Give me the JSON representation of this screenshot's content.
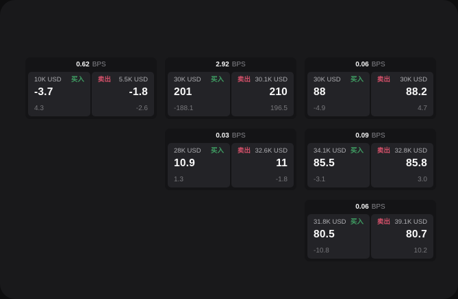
{
  "labels": {
    "bps_suffix": "BPS",
    "buy": "买入",
    "sell": "卖出"
  },
  "colors": {
    "buy": "#3f9e63",
    "sell": "#d25069",
    "page_bg": "#19191b",
    "outer_bg": "#0e0e0f",
    "card_bg": "#141416",
    "panel_bg": "#232327"
  },
  "cards": [
    {
      "bps": "0.62",
      "buy": {
        "amount": "10K USD",
        "price": "-3.7",
        "sub": "4.3"
      },
      "sell": {
        "amount": "5.5K USD",
        "price": "-1.8",
        "sub": "-2.6"
      }
    },
    {
      "bps": "2.92",
      "buy": {
        "amount": "30K USD",
        "price": "201",
        "sub": "-188.1"
      },
      "sell": {
        "amount": "30.1K USD",
        "price": "210",
        "sub": "196.5"
      }
    },
    {
      "bps": "0.06",
      "buy": {
        "amount": "30K USD",
        "price": "88",
        "sub": "-4.9"
      },
      "sell": {
        "amount": "30K USD",
        "price": "88.2",
        "sub": "4.7"
      }
    },
    {
      "bps": "0.03",
      "buy": {
        "amount": "28K USD",
        "price": "10.9",
        "sub": "1.3"
      },
      "sell": {
        "amount": "32.6K USD",
        "price": "11",
        "sub": "-1.8"
      }
    },
    {
      "bps": "0.09",
      "buy": {
        "amount": "34.1K USD",
        "price": "85.5",
        "sub": "-3.1"
      },
      "sell": {
        "amount": "32.8K USD",
        "price": "85.8",
        "sub": "3.0"
      }
    },
    {
      "bps": "0.06",
      "buy": {
        "amount": "31.8K USD",
        "price": "80.5",
        "sub": "-10.8"
      },
      "sell": {
        "amount": "39.1K USD",
        "price": "80.7",
        "sub": "10.2"
      }
    }
  ]
}
